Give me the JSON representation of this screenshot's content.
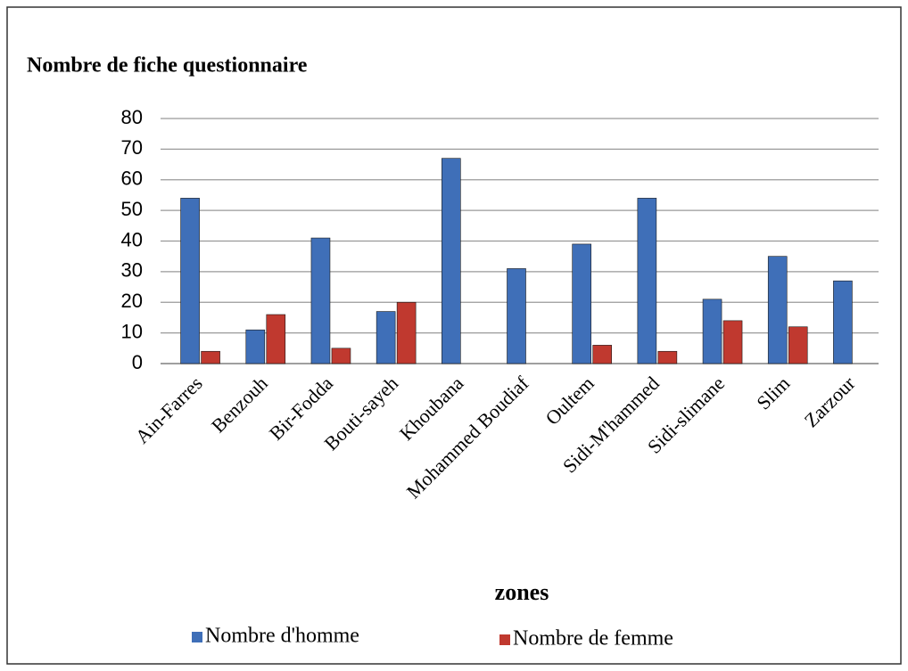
{
  "chart_data": {
    "type": "bar",
    "title": "Nombre de fiche questionnaire",
    "x_label": "zones",
    "categories": [
      "Ain-Farres",
      "Benzouh",
      "Bir-Fodda",
      "Bouti-sayeh",
      "Khoubana",
      "Mohammed Boudiaf",
      "Oultem",
      "Sidi-M'hammed",
      "Sidi-slimane",
      "Slim",
      "Zarzour"
    ],
    "series": [
      {
        "name": "Nombre d'homme",
        "color": "#3f6fb8",
        "values": [
          54,
          11,
          41,
          17,
          67,
          31,
          39,
          54,
          21,
          35,
          27
        ]
      },
      {
        "name": "Nombre de femme",
        "color": "#c0392f",
        "values": [
          4,
          16,
          5,
          20,
          0,
          0,
          6,
          4,
          14,
          12,
          0
        ]
      }
    ],
    "ylim": [
      0,
      80
    ],
    "yticks": [
      0,
      10,
      20,
      30,
      40,
      50,
      60,
      70,
      80
    ],
    "grid": true
  }
}
